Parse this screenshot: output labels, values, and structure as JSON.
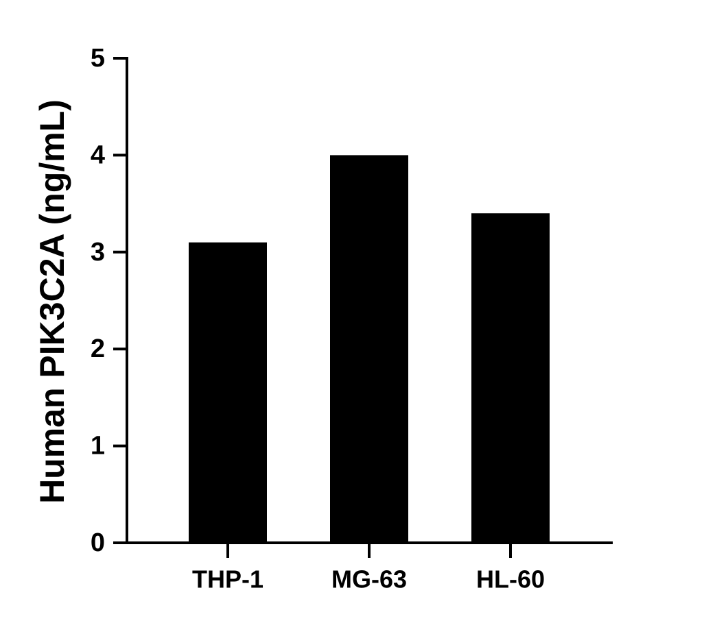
{
  "chart_data": {
    "type": "bar",
    "y_label": "Human PIK3C2A (ng/mL)",
    "categories": [
      "THP-1",
      "MG-63",
      "HL-60"
    ],
    "values": [
      3.1,
      4.0,
      3.4
    ],
    "color": "#000000",
    "ylim": [
      0,
      5
    ],
    "yticks": [
      0,
      1,
      2,
      3,
      4,
      5
    ],
    "grid": false
  }
}
